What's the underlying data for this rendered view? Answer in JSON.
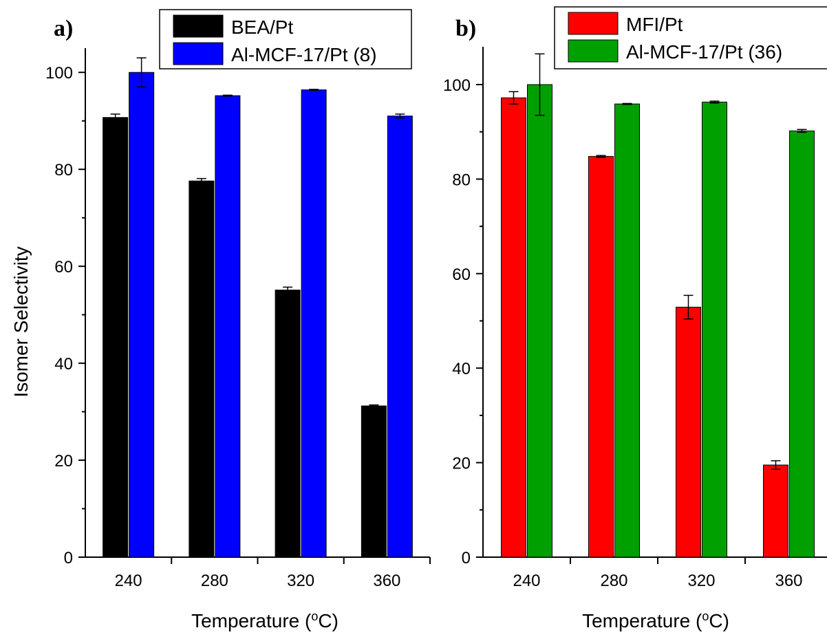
{
  "ylabel": "Isomer Selectivity",
  "chart_data": [
    {
      "type": "bar",
      "panel_label": "a)",
      "xlabel_main": "Temperature (",
      "xlabel_unit_sup": "o",
      "xlabel_unit_tail": "C)",
      "ylim": [
        0,
        105
      ],
      "yticks": [
        "0",
        "20",
        "40",
        "60",
        "80",
        "100"
      ],
      "categories": [
        "240",
        "280",
        "320",
        "360"
      ],
      "legend_position": "top-center",
      "grid": false,
      "series": [
        {
          "name": "BEA/Pt",
          "color": "#000000",
          "values": [
            90.7,
            77.6,
            55.1,
            31.2
          ],
          "errors": [
            0.7,
            0.5,
            0.6,
            0.2
          ]
        },
        {
          "name": "Al-MCF-17/Pt (8)",
          "color": "#0000ff",
          "values": [
            100.0,
            95.2,
            96.4,
            91.0
          ],
          "errors": [
            3.0,
            0.1,
            0.1,
            0.4
          ]
        }
      ]
    },
    {
      "type": "bar",
      "panel_label": "b)",
      "xlabel_main": "Temperature (",
      "xlabel_unit_sup": "o",
      "xlabel_unit_tail": "C)",
      "ylim": [
        0,
        108
      ],
      "yticks": [
        "0",
        "20",
        "40",
        "60",
        "80",
        "100"
      ],
      "categories": [
        "240",
        "280",
        "320",
        "360"
      ],
      "legend_position": "top-right",
      "grid": false,
      "series": [
        {
          "name": "MFI/Pt",
          "color": "#ff0000",
          "values": [
            97.2,
            84.8,
            52.9,
            19.5
          ],
          "errors": [
            1.3,
            0.2,
            2.5,
            0.9
          ]
        },
        {
          "name": "Al-MCF-17/Pt (36)",
          "color": "#00a000",
          "values": [
            100.0,
            95.9,
            96.3,
            90.2
          ],
          "errors": [
            6.5,
            0.1,
            0.2,
            0.3
          ]
        }
      ]
    }
  ]
}
